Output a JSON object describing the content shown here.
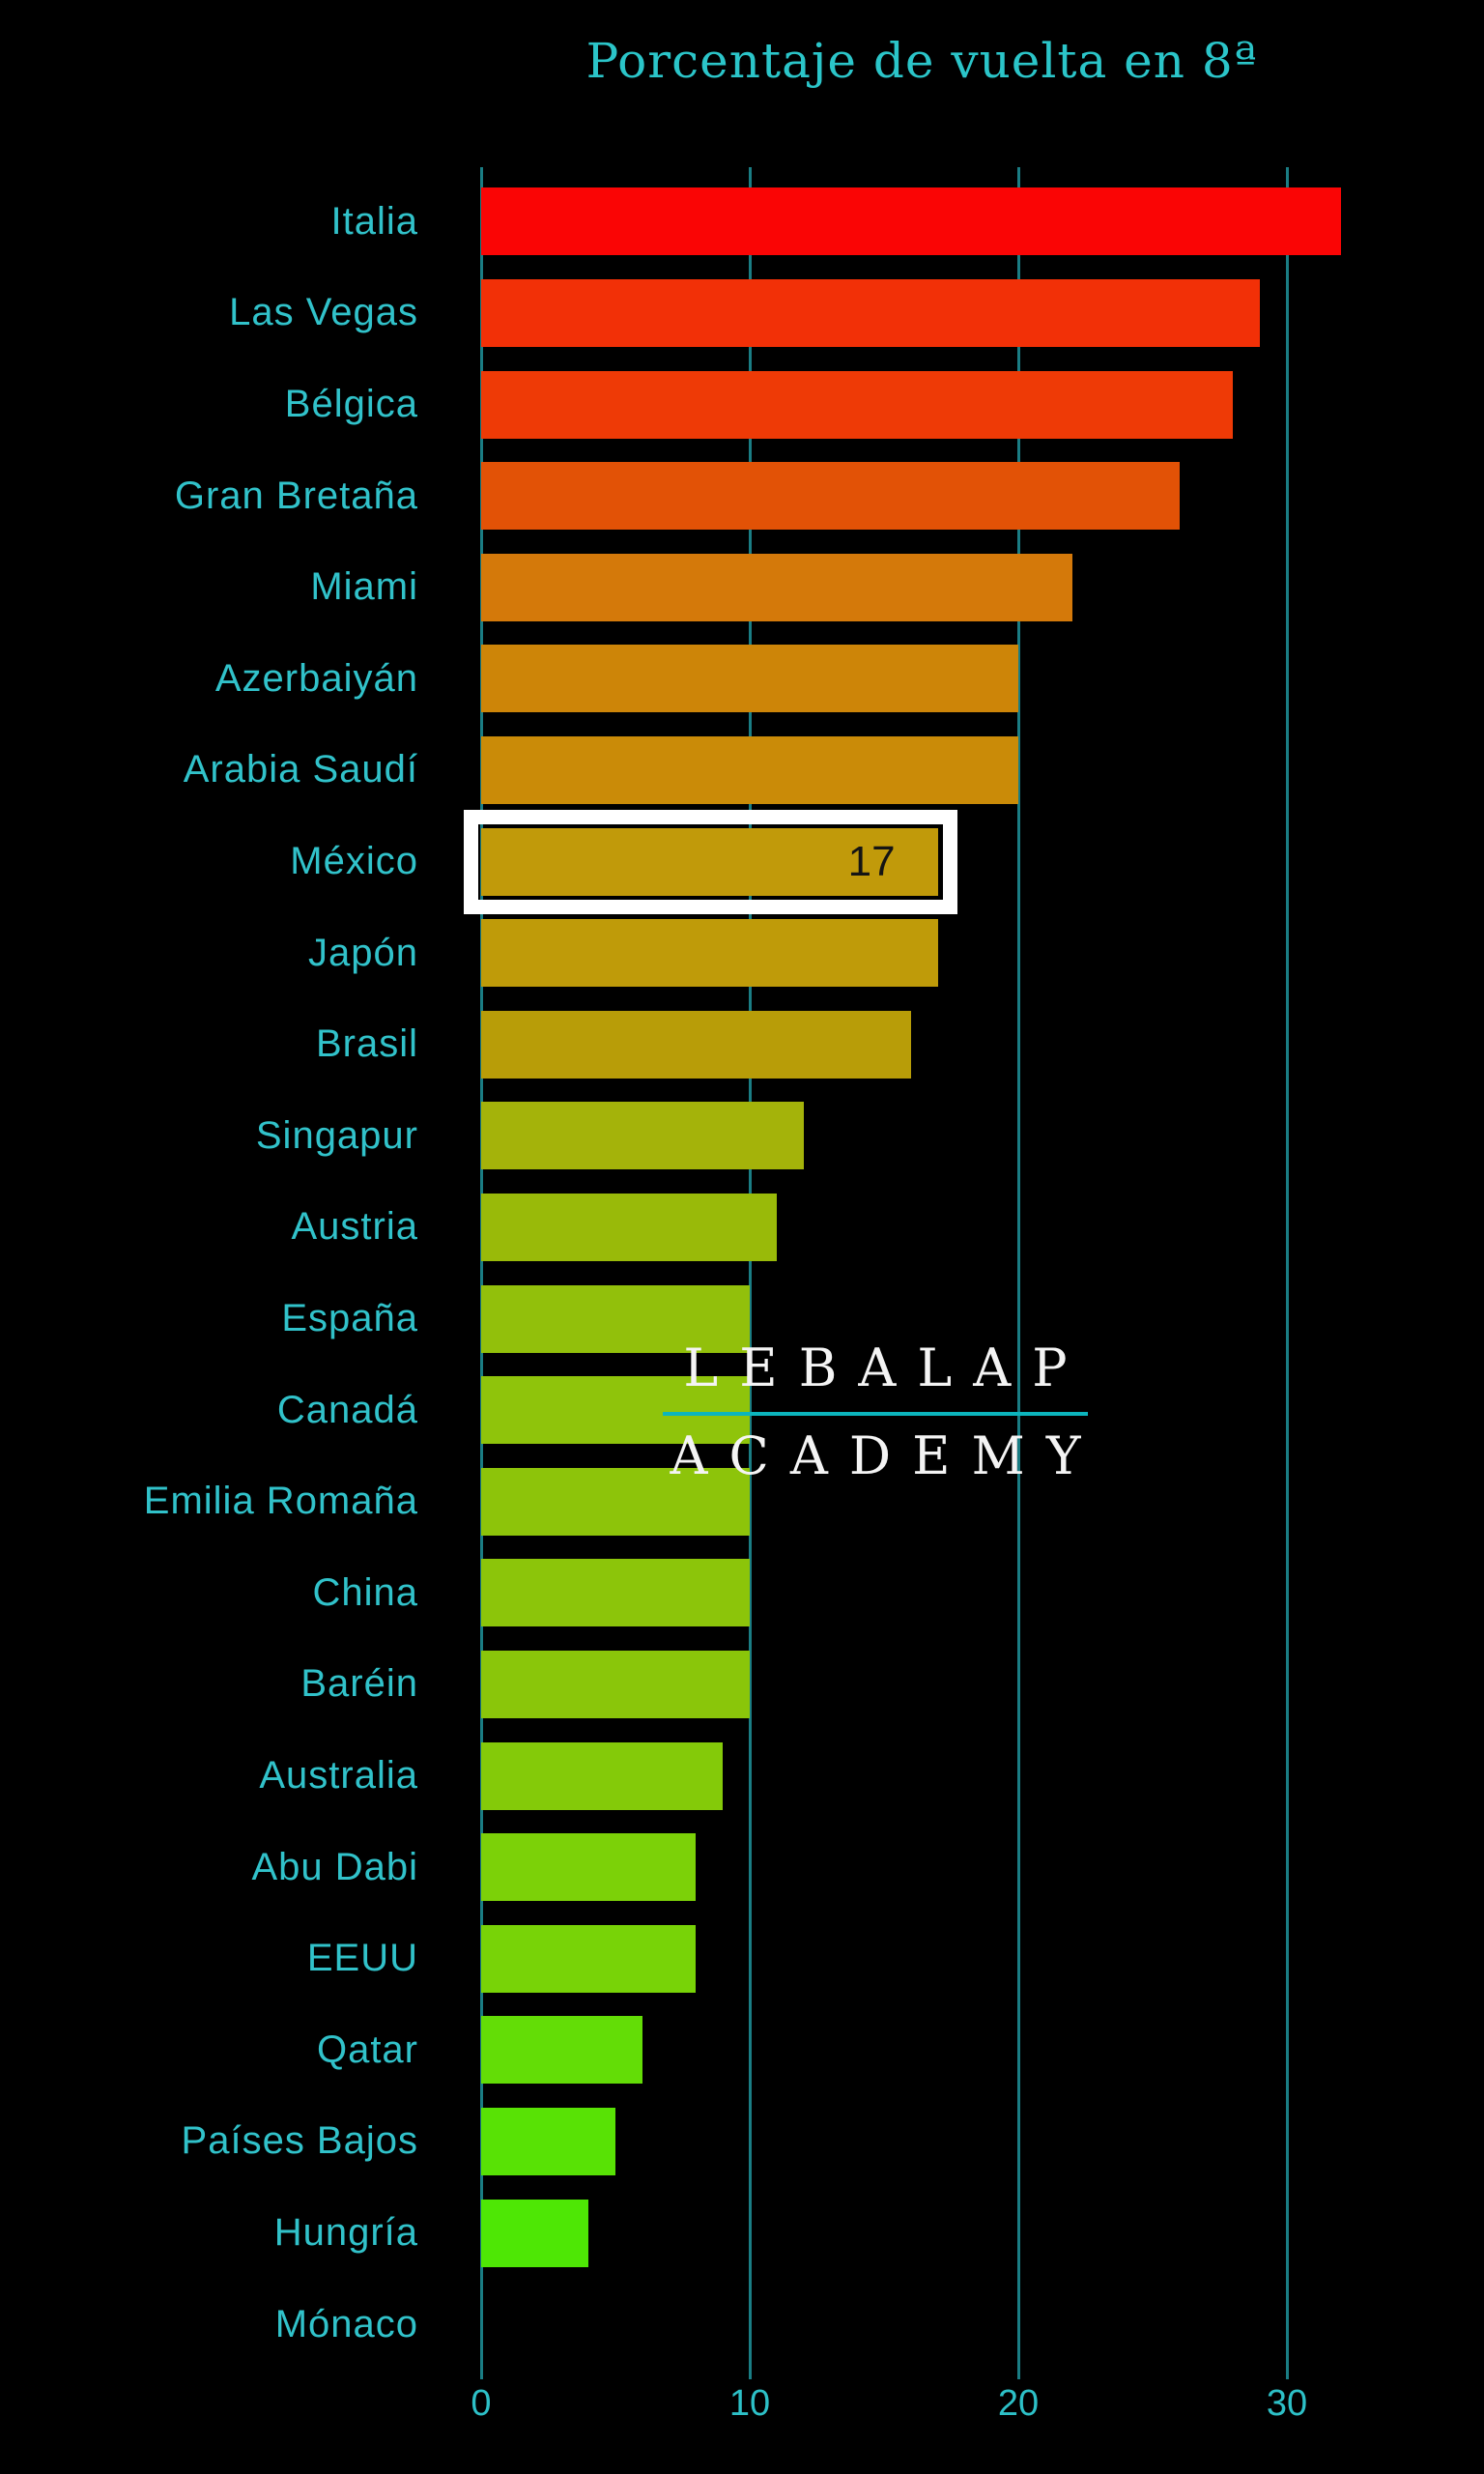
{
  "title": "Porcentaje de vuelta en 8ª",
  "watermark": {
    "line1": "LEBALAP",
    "line2": "ACADEMY"
  },
  "colors": {
    "background": "#000000",
    "title_text": "#2bc5c9",
    "label_text": "#31c2ca",
    "gridline": "#1a7d84",
    "highlight_border": "#ffffff",
    "value_text": "#141414",
    "watermark_text": "#f4f4f4",
    "watermark_divider": "#0cb5bd"
  },
  "chart_data": {
    "type": "bar",
    "orientation": "horizontal",
    "title": "Porcentaje de vuelta en 8ª",
    "xlabel": "",
    "ylabel": "",
    "x_ticks": [
      0,
      10,
      20,
      30
    ],
    "xlim": [
      0,
      33.5
    ],
    "grid": true,
    "categories": [
      "Italia",
      "Las Vegas",
      "Bélgica",
      "Gran Bretaña",
      "Miami",
      "Azerbaiyán",
      "Arabia Saudí",
      "México",
      "Japón",
      "Brasil",
      "Singapur",
      "Austria",
      "España",
      "Canadá",
      "Emilia Romaña",
      "China",
      "Baréin",
      "Australia",
      "Abu Dabi",
      "EEUU",
      "Qatar",
      "Países Bajos",
      "Hungría",
      "Mónaco"
    ],
    "values": [
      32,
      29,
      28,
      26,
      22,
      20,
      20,
      17,
      17,
      16,
      12,
      11,
      10,
      10,
      10,
      10,
      10,
      9,
      8,
      8,
      6,
      5,
      4,
      0
    ],
    "bar_colors": [
      "#fa0505",
      "#f23007",
      "#ee3a06",
      "#e25206",
      "#d4790a",
      "#cd8508",
      "#ca8b08",
      "#c19a0a",
      "#bf9b09",
      "#b89d08",
      "#a4b30a",
      "#99ba09",
      "#92c00b",
      "#8fc40b",
      "#8dc40a",
      "#8cc50a",
      "#8ac60a",
      "#84ca09",
      "#7cd108",
      "#78d307",
      "#63dd06",
      "#58e205",
      "#4ee705",
      "#4ee705"
    ],
    "highlight": {
      "category": "México",
      "value_label": "17"
    }
  }
}
